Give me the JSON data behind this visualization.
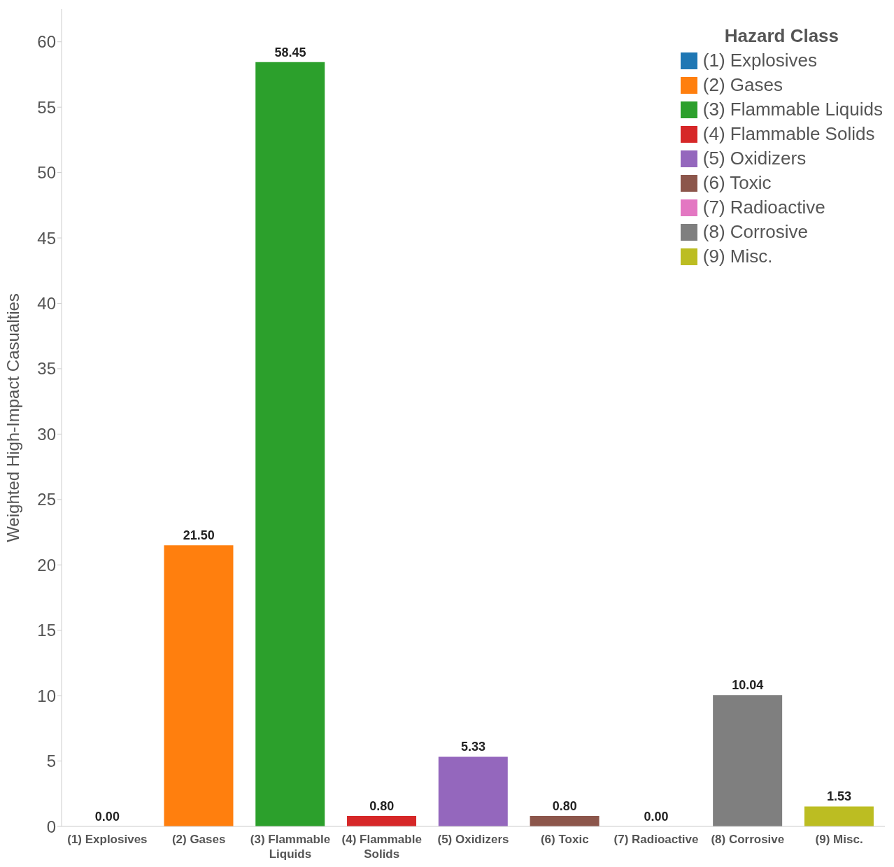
{
  "chart_data": {
    "type": "bar",
    "ylabel": "Weighted High-Impact Casualties",
    "legend_title": "Hazard Class",
    "legend": "top right",
    "grid": false,
    "stacked": true,
    "categories": [
      "(1) Explosives",
      "(2) Gases",
      "(3) Flammable Liquids",
      "(4) Flammable Solids",
      "(5) Oxidizers",
      "(6) Toxic",
      "(7) Radioactive",
      "(8) Corrosive",
      "(9) Misc."
    ],
    "series": [
      {
        "name": "(1) Explosives",
        "color": "#1f77b4",
        "values": [
          0,
          null,
          null,
          null,
          null,
          null,
          null,
          null,
          null
        ],
        "value_labels": [
          "0.00",
          null,
          null,
          null,
          null,
          null,
          null,
          null,
          null
        ]
      },
      {
        "name": "(2) Gases",
        "color": "#ff7f0e",
        "values": [
          null,
          21.5,
          null,
          null,
          null,
          null,
          null,
          null,
          null
        ],
        "value_labels": [
          null,
          "21.50",
          null,
          null,
          null,
          null,
          null,
          null,
          null
        ]
      },
      {
        "name": "(3) Flammable Liquids",
        "color": "#2ca02c",
        "values": [
          null,
          null,
          58.45,
          null,
          null,
          null,
          null,
          null,
          null
        ],
        "value_labels": [
          null,
          null,
          "58.45",
          null,
          null,
          null,
          null,
          null,
          null
        ]
      },
      {
        "name": "(4) Flammable Solids",
        "color": "#d62728",
        "values": [
          null,
          null,
          null,
          0.8,
          null,
          null,
          null,
          null,
          null
        ],
        "value_labels": [
          null,
          null,
          null,
          "0.80",
          null,
          null,
          null,
          null,
          null
        ]
      },
      {
        "name": "(5) Oxidizers",
        "color": "#9467bd",
        "values": [
          null,
          null,
          null,
          null,
          5.33,
          null,
          null,
          null,
          null
        ],
        "value_labels": [
          null,
          null,
          null,
          null,
          "5.33",
          null,
          null,
          null,
          null
        ]
      },
      {
        "name": "(6) Toxic",
        "color": "#8c564b",
        "values": [
          null,
          null,
          null,
          null,
          null,
          0.8,
          null,
          null,
          null
        ],
        "value_labels": [
          null,
          null,
          null,
          null,
          null,
          "0.80",
          null,
          null,
          null
        ]
      },
      {
        "name": "(7) Radioactive",
        "color": "#e377c2",
        "values": [
          null,
          null,
          null,
          null,
          null,
          null,
          0,
          null,
          null
        ],
        "value_labels": [
          null,
          null,
          null,
          null,
          null,
          null,
          "0.00",
          null,
          null
        ]
      },
      {
        "name": "(8) Corrosive",
        "color": "#7f7f7f",
        "values": [
          null,
          null,
          null,
          null,
          null,
          null,
          null,
          10.04,
          null
        ],
        "value_labels": [
          null,
          null,
          null,
          null,
          null,
          null,
          null,
          "10.04",
          null
        ]
      },
      {
        "name": "(9) Misc.",
        "color": "#bcbd22",
        "values": [
          null,
          null,
          null,
          null,
          null,
          null,
          null,
          null,
          1.53
        ],
        "value_labels": [
          null,
          null,
          null,
          null,
          null,
          null,
          null,
          null,
          "1.53"
        ]
      }
    ],
    "ylim": [
      0,
      62.5
    ],
    "yticks": [
      0,
      5,
      10,
      15,
      20,
      25,
      30,
      35,
      40,
      45,
      50,
      55,
      60
    ]
  }
}
